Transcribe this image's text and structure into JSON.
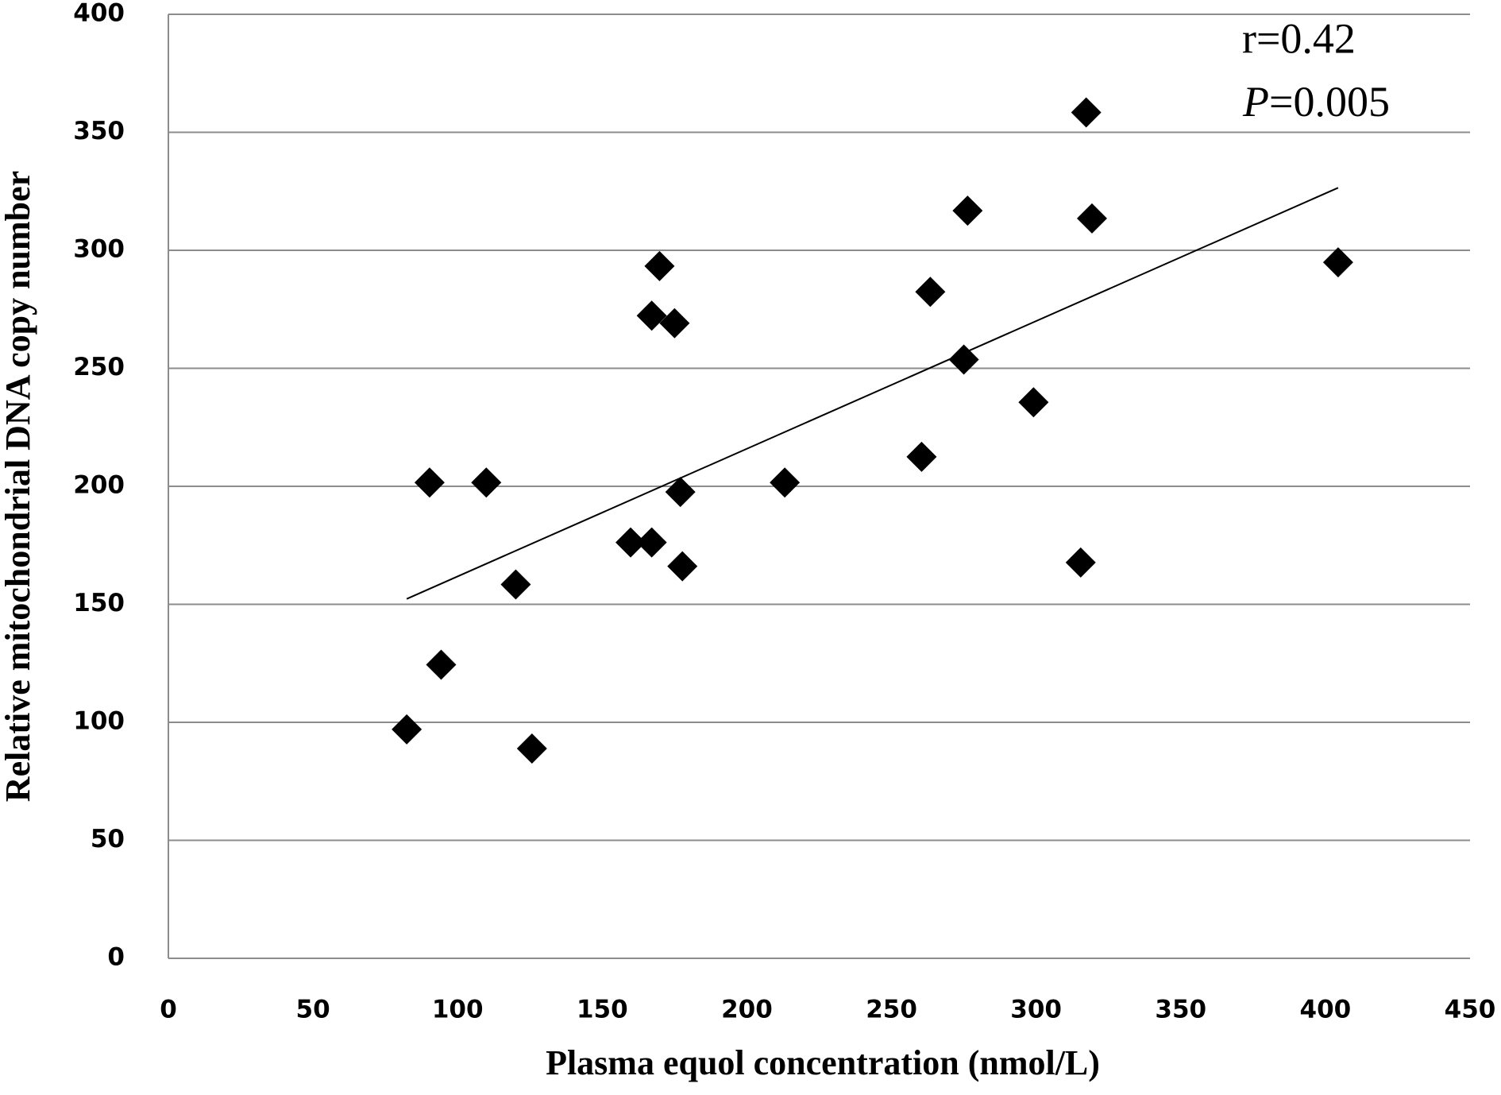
{
  "chart_data": {
    "type": "scatter",
    "x_label": "Plasma equol concentration (nmol/L)",
    "y_label": "Relative mitochondrial DNA copy number",
    "annotations": [
      "r=0.42",
      "P=0.005"
    ],
    "series": [
      {
        "color": "#000000",
        "x": [
          82.4,
          90.3,
          94.3,
          109.9,
          120.1,
          125.7,
          159.8,
          167.1,
          167.1,
          169.8,
          175,
          177,
          177.7,
          213.1,
          260.4,
          263.4,
          275,
          276.3,
          299.1,
          315.4,
          317.3,
          319.3,
          404.4
        ],
        "values": [
          97,
          201.6,
          124.4,
          201.6,
          158.4,
          88.9,
          176.2,
          176.2,
          272.3,
          293.3,
          269.1,
          197.6,
          166.1,
          201.6,
          212.5,
          282.4,
          253.7,
          316.8,
          235.6,
          167.7,
          358.4,
          313.5,
          294.9
        ]
      }
    ],
    "trendline": {
      "x": [
        82.4,
        404.4
      ],
      "values": [
        152.3,
        326.5
      ],
      "color": "#000000"
    },
    "xlim": [
      0,
      450
    ],
    "xticks": [
      0,
      50,
      100,
      150,
      200,
      250,
      300,
      350,
      400,
      450
    ],
    "ylim": [
      0,
      400
    ],
    "yticks": [
      0,
      50,
      100,
      150,
      200,
      250,
      300,
      350,
      400
    ],
    "grid": true
  }
}
